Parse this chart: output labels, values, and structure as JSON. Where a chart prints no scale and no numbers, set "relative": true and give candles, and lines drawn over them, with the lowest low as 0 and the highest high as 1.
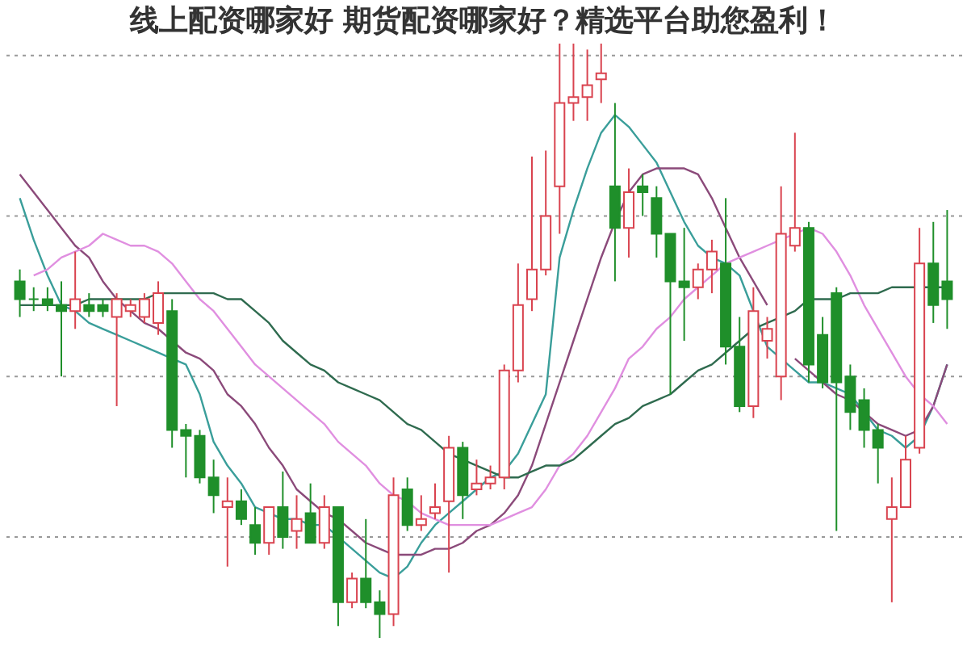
{
  "chart_data": {
    "type": "candlestick",
    "title": "线上配资哪家好 期货配资哪家好？精选平台助您盈利！",
    "relative": true,
    "tick_labels": false,
    "categories": [
      null,
      null,
      null,
      null,
      null,
      null,
      null,
      null,
      null,
      null,
      null,
      null,
      null,
      null,
      null,
      null,
      null,
      null,
      null,
      null,
      null,
      null,
      null,
      null,
      null,
      null,
      null,
      null,
      null,
      null,
      null,
      null,
      null,
      null,
      null,
      null,
      null,
      null,
      null,
      null,
      null,
      null,
      null,
      null,
      null,
      null,
      null,
      null,
      null,
      null,
      null,
      null,
      null,
      null,
      null,
      null,
      null,
      null,
      null,
      null,
      null,
      null,
      null,
      null,
      null,
      null,
      null,
      null
    ],
    "ohlc": [
      [
        0.6,
        0.62,
        0.54,
        0.57
      ],
      [
        0.57,
        0.59,
        0.55,
        0.57
      ],
      [
        0.57,
        0.59,
        0.55,
        0.56
      ],
      [
        0.56,
        0.6,
        0.44,
        0.55
      ],
      [
        0.55,
        0.65,
        0.52,
        0.57
      ],
      [
        0.56,
        0.58,
        0.54,
        0.55
      ],
      [
        0.56,
        0.57,
        0.54,
        0.55
      ],
      [
        0.54,
        0.58,
        0.39,
        0.57
      ],
      [
        0.55,
        0.57,
        0.54,
        0.56
      ],
      [
        0.54,
        0.58,
        0.53,
        0.57
      ],
      [
        0.53,
        0.6,
        0.51,
        0.58
      ],
      [
        0.55,
        0.57,
        0.32,
        0.35
      ],
      [
        0.35,
        0.36,
        0.27,
        0.34
      ],
      [
        0.34,
        0.35,
        0.26,
        0.27
      ],
      [
        0.27,
        0.3,
        0.21,
        0.24
      ],
      [
        0.22,
        0.27,
        0.12,
        0.23
      ],
      [
        0.23,
        0.25,
        0.19,
        0.2
      ],
      [
        0.19,
        0.22,
        0.14,
        0.16
      ],
      [
        0.16,
        0.22,
        0.14,
        0.22
      ],
      [
        0.22,
        0.28,
        0.15,
        0.17
      ],
      [
        0.18,
        0.24,
        0.15,
        0.2
      ],
      [
        0.21,
        0.26,
        0.16,
        0.16
      ],
      [
        0.16,
        0.24,
        0.15,
        0.22
      ],
      [
        0.22,
        0.22,
        0.02,
        0.06
      ],
      [
        0.06,
        0.11,
        0.05,
        0.1
      ],
      [
        0.1,
        0.2,
        0.05,
        0.06
      ],
      [
        0.06,
        0.08,
        0.0,
        0.04
      ],
      [
        0.04,
        0.27,
        0.02,
        0.24
      ],
      [
        0.25,
        0.27,
        0.18,
        0.19
      ],
      [
        0.19,
        0.24,
        0.18,
        0.2
      ],
      [
        0.21,
        0.26,
        0.2,
        0.22
      ],
      [
        0.23,
        0.34,
        0.11,
        0.32
      ],
      [
        0.32,
        0.33,
        0.2,
        0.24
      ],
      [
        0.25,
        0.3,
        0.24,
        0.26
      ],
      [
        0.26,
        0.29,
        0.25,
        0.27
      ],
      [
        0.27,
        0.46,
        0.25,
        0.45
      ],
      [
        0.45,
        0.63,
        0.43,
        0.56
      ],
      [
        0.57,
        0.81,
        0.55,
        0.62
      ],
      [
        0.62,
        0.82,
        0.61,
        0.71
      ],
      [
        0.76,
        1.0,
        0.68,
        0.9
      ],
      [
        0.9,
        1.0,
        0.87,
        0.91
      ],
      [
        0.91,
        0.99,
        0.87,
        0.93
      ],
      [
        0.94,
        1.0,
        0.9,
        0.95
      ],
      [
        0.76,
        0.9,
        0.6,
        0.69
      ],
      [
        0.69,
        0.79,
        0.64,
        0.75
      ],
      [
        0.76,
        0.78,
        0.71,
        0.75
      ],
      [
        0.74,
        0.76,
        0.64,
        0.68
      ],
      [
        0.68,
        0.68,
        0.41,
        0.6
      ],
      [
        0.6,
        0.69,
        0.5,
        0.59
      ],
      [
        0.59,
        0.63,
        0.57,
        0.62
      ],
      [
        0.62,
        0.67,
        0.58,
        0.65
      ],
      [
        0.63,
        0.74,
        0.46,
        0.49
      ],
      [
        0.49,
        0.54,
        0.38,
        0.39
      ],
      [
        0.39,
        0.59,
        0.37,
        0.55
      ],
      [
        0.5,
        0.54,
        0.47,
        0.52
      ],
      [
        0.44,
        0.76,
        0.4,
        0.68
      ],
      [
        0.66,
        0.85,
        0.65,
        0.69
      ],
      [
        0.69,
        0.7,
        0.43,
        0.46
      ],
      [
        0.51,
        0.54,
        0.42,
        0.43
      ],
      [
        0.58,
        0.59,
        0.18,
        0.43
      ],
      [
        0.44,
        0.46,
        0.35,
        0.38
      ],
      [
        0.4,
        0.42,
        0.32,
        0.35
      ],
      [
        0.35,
        0.36,
        0.26,
        0.32
      ],
      [
        0.2,
        0.27,
        0.06,
        0.22
      ],
      [
        0.22,
        0.34,
        0.22,
        0.3
      ],
      [
        0.32,
        0.69,
        0.31,
        0.63
      ],
      [
        0.63,
        0.7,
        0.53,
        0.56
      ],
      [
        0.6,
        0.72,
        0.52,
        0.57
      ]
    ],
    "colors": [
      "#1f8f2a",
      "#1f8f2a",
      "#1f8f2a",
      "#1f8f2a",
      "#d9434f",
      "#1f8f2a",
      "#1f8f2a",
      "#d9434f",
      "#d9434f",
      "#d9434f",
      "#d9434f",
      "#1f8f2a",
      "#1f8f2a",
      "#1f8f2a",
      "#1f8f2a",
      "#d9434f",
      "#1f8f2a",
      "#1f8f2a",
      "#d9434f",
      "#1f8f2a",
      "#d9434f",
      "#1f8f2a",
      "#d9434f",
      "#1f8f2a",
      "#d9434f",
      "#1f8f2a",
      "#1f8f2a",
      "#d9434f",
      "#1f8f2a",
      "#d9434f",
      "#d9434f",
      "#d9434f",
      "#1f8f2a",
      "#d9434f",
      "#d9434f",
      "#d9434f",
      "#d9434f",
      "#d9434f",
      "#d9434f",
      "#d9434f",
      "#d9434f",
      "#d9434f",
      "#d9434f",
      "#1f8f2a",
      "#d9434f",
      "#1f8f2a",
      "#1f8f2a",
      "#1f8f2a",
      "#1f8f2a",
      "#d9434f",
      "#d9434f",
      "#1f8f2a",
      "#1f8f2a",
      "#d9434f",
      "#d9434f",
      "#d9434f",
      "#d9434f",
      "#1f8f2a",
      "#1f8f2a",
      "#1f8f2a",
      "#1f8f2a",
      "#1f8f2a",
      "#1f8f2a",
      "#d9434f",
      "#d9434f",
      "#d9434f",
      "#1f8f2a",
      "#1f8f2a"
    ],
    "series": [
      {
        "type": "line",
        "color": "#3a9e9a",
        "values": [
          0.74,
          0.67,
          0.61,
          0.56,
          0.55,
          0.53,
          0.52,
          0.51,
          0.5,
          0.49,
          0.48,
          0.47,
          0.46,
          0.41,
          0.33,
          0.29,
          0.26,
          0.22,
          0.21,
          0.2,
          0.2,
          0.19,
          0.19,
          0.17,
          0.15,
          0.13,
          0.11,
          0.1,
          0.12,
          0.16,
          0.19,
          0.21,
          0.23,
          0.25,
          0.27,
          0.28,
          0.31,
          0.36,
          0.41,
          0.64,
          0.72,
          0.79,
          0.85,
          0.88,
          0.86,
          0.83,
          0.8,
          0.75,
          0.7,
          0.66,
          0.64,
          0.63,
          0.61,
          0.55,
          0.49,
          0.47,
          0.45,
          0.43,
          0.43,
          0.42,
          0.41,
          0.38,
          0.35,
          0.34,
          0.32,
          0.34,
          0.39,
          0.46
        ]
      },
      {
        "type": "line",
        "color": "#8b4a7a",
        "values": [
          0.78,
          0.75,
          0.72,
          0.69,
          0.66,
          0.64,
          0.6,
          0.57,
          0.55,
          0.53,
          0.52,
          0.5,
          0.48,
          0.47,
          0.45,
          0.41,
          0.39,
          0.36,
          0.32,
          0.29,
          0.25,
          0.23,
          0.21,
          0.2,
          0.18,
          0.16,
          0.15,
          0.14,
          0.14,
          0.14,
          0.15,
          0.15,
          0.16,
          0.18,
          0.19,
          0.21,
          0.24,
          0.29,
          0.36,
          0.43,
          0.5,
          0.57,
          0.64,
          0.7,
          0.75,
          0.78,
          0.79,
          0.79,
          0.79,
          0.78,
          0.74,
          0.69,
          0.64,
          0.6,
          0.56,
          null,
          0.47,
          0.45,
          0.43,
          0.41,
          0.4,
          0.38,
          0.36,
          0.35,
          0.34,
          0.35,
          0.39,
          0.46
        ]
      },
      {
        "type": "line",
        "color": "#e08fe0",
        "values": [
          null,
          0.61,
          0.62,
          0.64,
          0.65,
          0.66,
          0.68,
          0.67,
          0.66,
          0.66,
          0.65,
          0.63,
          0.6,
          0.57,
          0.55,
          0.52,
          0.49,
          0.46,
          0.44,
          0.42,
          0.4,
          0.38,
          0.36,
          0.33,
          0.31,
          0.29,
          0.26,
          0.24,
          0.23,
          0.21,
          0.2,
          0.19,
          0.19,
          0.19,
          0.19,
          0.2,
          0.21,
          0.22,
          0.25,
          0.29,
          0.31,
          0.34,
          0.38,
          0.42,
          0.47,
          0.49,
          0.52,
          0.54,
          0.57,
          0.59,
          0.61,
          0.63,
          0.64,
          0.65,
          0.66,
          0.67,
          0.68,
          0.69,
          0.68,
          0.65,
          0.61,
          0.56,
          0.52,
          0.48,
          0.44,
          0.41,
          0.39,
          0.36
        ]
      },
      {
        "type": "line",
        "color": "#2f6b4f",
        "values": [
          0.56,
          0.56,
          0.56,
          0.56,
          0.56,
          0.57,
          0.57,
          0.57,
          0.57,
          0.57,
          0.58,
          0.58,
          0.58,
          0.58,
          0.58,
          0.57,
          0.57,
          0.55,
          0.53,
          0.5,
          0.48,
          0.46,
          0.45,
          0.43,
          0.42,
          0.41,
          0.4,
          0.38,
          0.36,
          0.35,
          0.33,
          0.31,
          0.3,
          0.29,
          0.28,
          0.27,
          0.27,
          0.28,
          0.29,
          0.29,
          0.3,
          0.32,
          0.34,
          0.36,
          0.37,
          0.39,
          0.4,
          0.41,
          0.43,
          0.45,
          0.46,
          0.48,
          0.5,
          0.52,
          0.53,
          0.54,
          0.55,
          0.57,
          0.57,
          0.57,
          0.58,
          0.58,
          0.58,
          0.59,
          0.59,
          0.59,
          0.59,
          0.59
        ]
      }
    ],
    "ref_lines": [
      {
        "axis": "y",
        "value": 0.98,
        "line_style": "dotted",
        "color": "#999999"
      },
      {
        "axis": "y",
        "value": 0.71,
        "line_style": "dotted",
        "color": "#999999"
      },
      {
        "axis": "y",
        "value": 0.44,
        "line_style": "dotted",
        "color": "#999999"
      },
      {
        "axis": "y",
        "value": 0.17,
        "line_style": "dotted",
        "color": "#999999"
      }
    ]
  }
}
